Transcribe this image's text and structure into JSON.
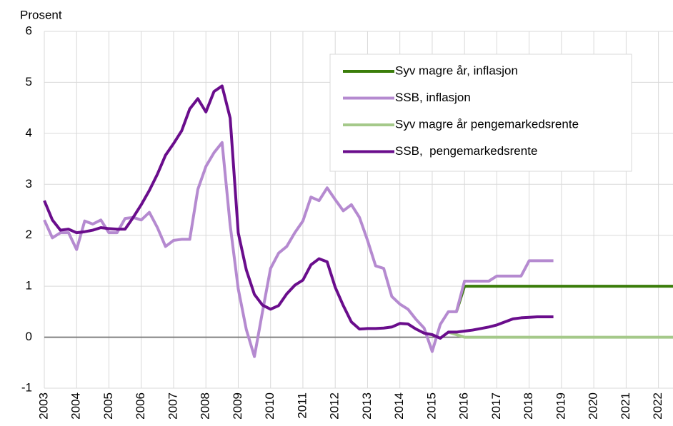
{
  "chart_data": {
    "type": "line",
    "y_label": "Prosent",
    "xlim": [
      2003,
      2022.45
    ],
    "xticks": [
      2003,
      2004,
      2005,
      2006,
      2007,
      2008,
      2009,
      2010,
      2011,
      2012,
      2013,
      2014,
      2015,
      2016,
      2017,
      2018,
      2019,
      2020,
      2021,
      2022
    ],
    "ylim": [
      -1,
      6
    ],
    "yticks": [
      -1,
      0,
      1,
      2,
      3,
      4,
      5,
      6
    ],
    "grid": true,
    "legend": "upper right",
    "series": [
      {
        "name": "Syv magre år, inflasjon",
        "color": "#3a7d0a",
        "x": [
          2015.75,
          2016,
          2022.45
        ],
        "values": [
          0.5,
          1,
          1
        ]
      },
      {
        "name": "SSB, inflasjon",
        "color": "#b58ad0",
        "x": [
          2003,
          2003.25,
          2003.5,
          2003.75,
          2004,
          2004.25,
          2004.5,
          2004.75,
          2005,
          2005.25,
          2005.5,
          2005.75,
          2006,
          2006.25,
          2006.5,
          2006.75,
          2007,
          2007.25,
          2007.5,
          2007.75,
          2008,
          2008.25,
          2008.5,
          2008.75,
          2009,
          2009.25,
          2009.5,
          2009.75,
          2010,
          2010.25,
          2010.5,
          2010.75,
          2011,
          2011.25,
          2011.5,
          2011.75,
          2012,
          2012.25,
          2012.5,
          2012.75,
          2013,
          2013.25,
          2013.5,
          2013.75,
          2014,
          2014.25,
          2014.5,
          2014.75,
          2015,
          2015.25,
          2015.5,
          2015.75,
          2016,
          2016.25,
          2016.5,
          2016.75,
          2017,
          2017.25,
          2017.5,
          2017.75,
          2018,
          2018.25,
          2018.5,
          2018.75
        ],
        "values": [
          2.3,
          1.95,
          2.05,
          2.05,
          1.72,
          2.28,
          2.22,
          2.3,
          2.05,
          2.05,
          2.33,
          2.35,
          2.3,
          2.45,
          2.15,
          1.78,
          1.9,
          1.92,
          1.92,
          2.9,
          3.35,
          3.62,
          3.82,
          2.2,
          0.95,
          0.15,
          -0.38,
          0.5,
          1.35,
          1.65,
          1.78,
          2.05,
          2.28,
          2.75,
          2.68,
          2.93,
          2.7,
          2.48,
          2.6,
          2.35,
          1.9,
          1.4,
          1.35,
          0.8,
          0.65,
          0.55,
          0.35,
          0.18,
          -0.28,
          0.25,
          0.5,
          0.5,
          1.1,
          1.1,
          1.1,
          1.1,
          1.2,
          1.2,
          1.2,
          1.2,
          1.5,
          1.5,
          1.5,
          1.5
        ]
      },
      {
        "name": "Syv magre år pengemarkedsrente",
        "color": "#a5c98a",
        "x": [
          2015.5,
          2016,
          2022.45
        ],
        "values": [
          0.1,
          0,
          0
        ]
      },
      {
        "name": "SSB,  pengemarkedsrente",
        "color": "#6a0d8c",
        "x": [
          2003,
          2003.25,
          2003.5,
          2003.75,
          2004,
          2004.25,
          2004.5,
          2004.75,
          2005,
          2005.25,
          2005.5,
          2005.75,
          2006,
          2006.25,
          2006.5,
          2006.75,
          2007,
          2007.25,
          2007.5,
          2007.75,
          2008,
          2008.25,
          2008.5,
          2008.75,
          2009,
          2009.25,
          2009.5,
          2009.75,
          2010,
          2010.25,
          2010.5,
          2010.75,
          2011,
          2011.25,
          2011.5,
          2011.75,
          2012,
          2012.25,
          2012.5,
          2012.75,
          2013,
          2013.25,
          2013.5,
          2013.75,
          2014,
          2014.25,
          2014.5,
          2014.75,
          2015,
          2015.25,
          2015.5,
          2015.75,
          2016,
          2016.25,
          2016.5,
          2016.75,
          2017,
          2017.25,
          2017.5,
          2017.75,
          2018,
          2018.25,
          2018.5,
          2018.75
        ],
        "values": [
          2.68,
          2.3,
          2.1,
          2.12,
          2.05,
          2.07,
          2.1,
          2.15,
          2.13,
          2.12,
          2.12,
          2.35,
          2.6,
          2.88,
          3.2,
          3.57,
          3.8,
          4.05,
          4.48,
          4.68,
          4.42,
          4.82,
          4.93,
          4.3,
          2.05,
          1.32,
          0.84,
          0.63,
          0.55,
          0.62,
          0.85,
          1.02,
          1.12,
          1.42,
          1.54,
          1.48,
          0.98,
          0.62,
          0.3,
          0.16,
          0.17,
          0.17,
          0.18,
          0.2,
          0.27,
          0.26,
          0.16,
          0.08,
          0.05,
          -0.02,
          0.1,
          0.1,
          0.12,
          0.14,
          0.17,
          0.2,
          0.24,
          0.3,
          0.36,
          0.38,
          0.39,
          0.4,
          0.4,
          0.4
        ]
      }
    ]
  }
}
